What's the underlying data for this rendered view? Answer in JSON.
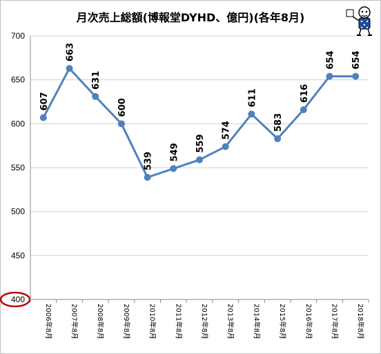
{
  "chart_data": {
    "type": "line",
    "title": "月次売上総額(博報堂DYHD、億円)(各年8月)",
    "categories": [
      "2006年8月",
      "2007年8月",
      "2008年8月",
      "2009年8月",
      "2010年8月",
      "2011年8月",
      "2012年8月",
      "2013年8月",
      "2014年8月",
      "2015年8月",
      "2016年8月",
      "2017年8月",
      "2018年8月"
    ],
    "series": [
      {
        "values": [
          607,
          663,
          631,
          600,
          539,
          549,
          559,
          574,
          611,
          583,
          616,
          654,
          654
        ]
      }
    ],
    "ylim": [
      400,
      700
    ],
    "yticks": [
      400,
      450,
      500,
      550,
      600,
      650,
      700
    ],
    "grid": true,
    "line_color": "#4f81bd",
    "highlight_color": "#c00000",
    "highlighted_tick": 400
  },
  "decorations": {
    "mascot_icon": "cartoon-character-icon"
  }
}
